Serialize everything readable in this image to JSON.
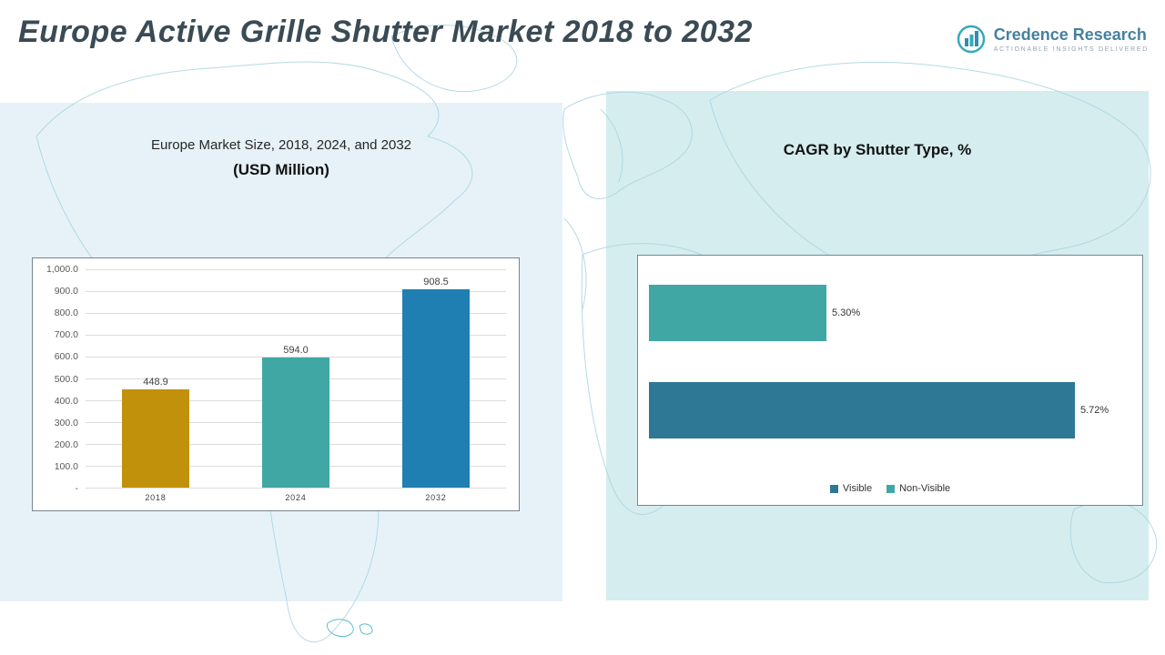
{
  "header": {
    "title": "Europe Active Grille Shutter Market 2018 to 2032",
    "logo": {
      "brand": "Credence Research",
      "tagline": "Actionable Insights Delivered"
    }
  },
  "left_panel": {
    "title_line1": "Europe Market Size, 2018, 2024, and 2032",
    "title_line2": "(USD Million)"
  },
  "right_panel": {
    "title": "CAGR by Shutter Type, %"
  },
  "chart_data": [
    {
      "type": "bar",
      "title": "Europe Market Size, 2018, 2024, and 2032 (USD Million)",
      "categories": [
        "2018",
        "2024",
        "2032"
      ],
      "values": [
        448.9,
        594.0,
        908.5
      ],
      "data_labels": [
        "448.9",
        "594.0",
        "908.5"
      ],
      "bar_colors": [
        "#C2910B",
        "#41A7A5",
        "#1F7FB2"
      ],
      "ylim": [
        0,
        1000
      ],
      "ytick_labels": [
        "1,000.0",
        "900.0",
        "800.0",
        "700.0",
        "600.0",
        "500.0",
        "400.0",
        "300.0",
        "200.0",
        "100.0",
        "-"
      ],
      "grid": true,
      "legend_position": "none"
    },
    {
      "type": "bar",
      "orientation": "horizontal",
      "title": "CAGR by Shutter Type, %",
      "categories": [
        "Non-Visible",
        "Visible"
      ],
      "values": [
        5.3,
        5.72
      ],
      "data_labels": [
        "5.30%",
        "5.72%"
      ],
      "bar_colors": [
        "#41A7A5",
        "#2E7896"
      ],
      "axis_min": 5.0,
      "axis_max": 5.8,
      "grid": false,
      "legend_position": "bottom",
      "legend": [
        {
          "label": "Visible",
          "color": "#2E7896"
        },
        {
          "label": "Non-Visible",
          "color": "#41A7A5"
        }
      ]
    }
  ]
}
